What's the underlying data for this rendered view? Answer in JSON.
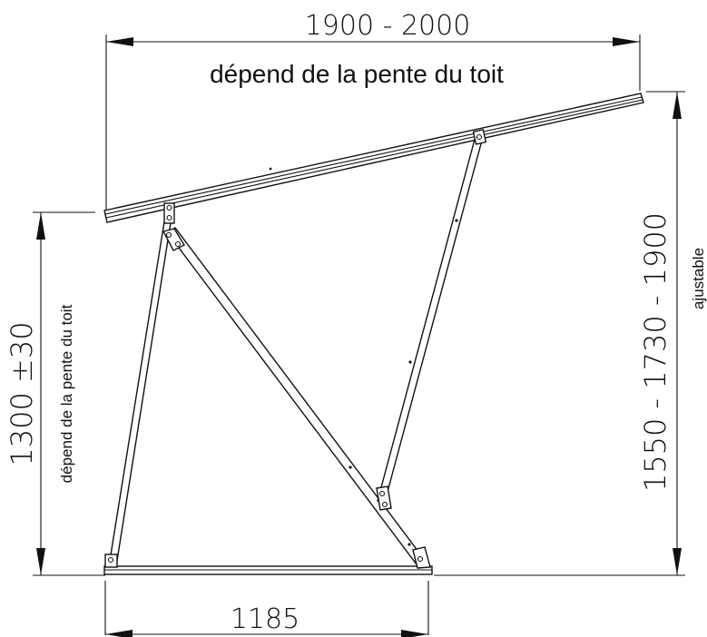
{
  "dimensions": {
    "top_width": "1900 - 2000",
    "top_width_note": "dépend de la pente du toit",
    "left_height": "1300 ±30",
    "left_height_note": "dépend de la pente du toit",
    "right_height": "1550 - 1730 - 1900",
    "right_height_note": "ajustable",
    "base_width": "1185"
  }
}
